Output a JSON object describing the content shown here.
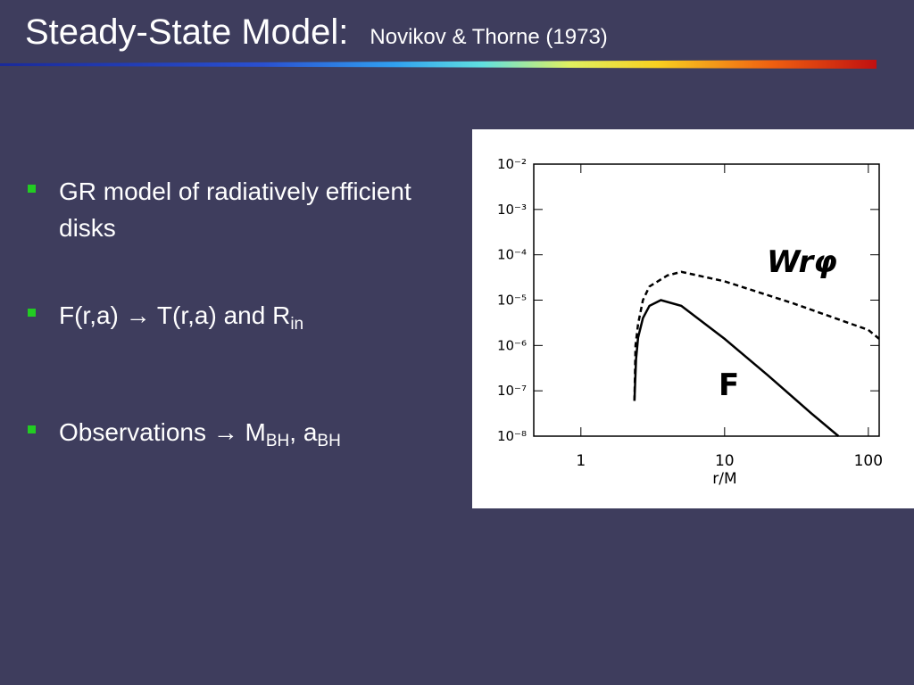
{
  "title": "Steady-State Model:",
  "subtitle": "Novikov & Thorne (1973)",
  "bullets": [
    [
      {
        "text": "GR model of radiatively efficient disks"
      }
    ],
    [
      {
        "text": "F(r,a) → T(r,a) and R"
      },
      {
        "sub": "in"
      }
    ],
    [
      {
        "text": "Observations → M"
      },
      {
        "sub": "BH"
      },
      {
        "text": ", a"
      },
      {
        "sub": "BH"
      }
    ]
  ],
  "chart_data": {
    "type": "line",
    "xlabel": "r/M",
    "xlog": true,
    "ylog": true,
    "xlim": [
      0.47,
      119
    ],
    "ylim": [
      1e-08,
      0.01
    ],
    "xticks": [
      1,
      10,
      100
    ],
    "yticks": [
      {
        "value": 1e-08,
        "label": "10⁻⁸"
      },
      {
        "value": 1e-07,
        "label": "10⁻⁷"
      },
      {
        "value": 1e-06,
        "label": "10⁻⁶"
      },
      {
        "value": 1e-05,
        "label": "10⁻⁵"
      },
      {
        "value": 0.0001,
        "label": "10⁻⁴"
      },
      {
        "value": 0.001,
        "label": "10⁻³"
      },
      {
        "value": 0.01,
        "label": "10⁻²"
      }
    ],
    "series": [
      {
        "name": "Wrφ",
        "color": "#000000",
        "style": "dashed",
        "x": [
          2.36,
          2.4,
          2.5,
          2.7,
          3,
          4,
          5,
          10,
          30,
          100,
          119
        ],
        "values": [
          6e-08,
          1e-06,
          3e-06,
          1e-05,
          2e-05,
          3.5e-05,
          4.2e-05,
          2.6e-05,
          8.5e-06,
          2.2e-06,
          1.4e-06
        ]
      },
      {
        "name": "F",
        "color": "#000000",
        "style": "solid",
        "x": [
          2.36,
          2.42,
          2.5,
          2.7,
          3,
          3.6,
          5,
          10,
          20,
          40,
          62
        ],
        "values": [
          6e-08,
          5e-07,
          1.5e-06,
          4e-06,
          7.5e-06,
          1e-05,
          7.5e-06,
          1.4e-06,
          2.2e-07,
          3.2e-08,
          1e-08
        ]
      }
    ]
  }
}
